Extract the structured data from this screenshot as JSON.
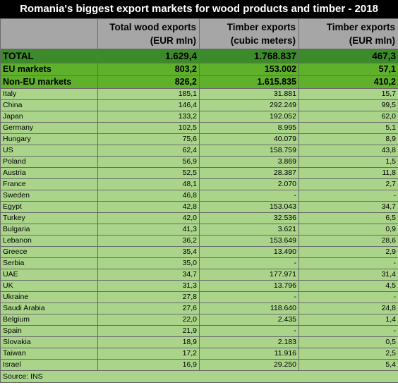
{
  "title": "Romania's biggest export markets for wood products and timber - 2018",
  "headers": [
    {
      "line1": "",
      "line2": ""
    },
    {
      "line1": "Total wood exports",
      "line2": "(EUR mln)"
    },
    {
      "line1": "Timber exports",
      "line2": "(cubic meters)"
    },
    {
      "line1": "Timber exports",
      "line2": "(EUR mln)"
    }
  ],
  "summary_rows": [
    {
      "label": "TOTAL",
      "total": "1.629,4",
      "cubic": "1.768.837",
      "eur": "467,3"
    },
    {
      "label": "EU markets",
      "total": "803,2",
      "cubic": "153.002",
      "eur": "57,1"
    },
    {
      "label": "Non-EU markets",
      "total": "826,2",
      "cubic": "1.615.835",
      "eur": "410,2"
    }
  ],
  "rows": [
    {
      "label": "Italy",
      "total": "185,1",
      "cubic": "31.881",
      "eur": "15,7"
    },
    {
      "label": "China",
      "total": "146,4",
      "cubic": "292.249",
      "eur": "99,5"
    },
    {
      "label": "Japan",
      "total": "133,2",
      "cubic": "192.052",
      "eur": "62,0"
    },
    {
      "label": "Germany",
      "total": "102,5",
      "cubic": "8.995",
      "eur": "5,1"
    },
    {
      "label": "Hungary",
      "total": "75,6",
      "cubic": "40.079",
      "eur": "8,9"
    },
    {
      "label": "US",
      "total": "62,4",
      "cubic": "158.759",
      "eur": "43,8"
    },
    {
      "label": "Poland",
      "total": "56,9",
      "cubic": "3.869",
      "eur": "1,5"
    },
    {
      "label": "Austria",
      "total": "52,5",
      "cubic": "28.387",
      "eur": "11,8"
    },
    {
      "label": "France",
      "total": "48,1",
      "cubic": "2.070",
      "eur": "2,7"
    },
    {
      "label": "Sweden",
      "total": "46,8",
      "cubic": "-",
      "eur": "-"
    },
    {
      "label": "Egypt",
      "total": "42,8",
      "cubic": "153.043",
      "eur": "34,7"
    },
    {
      "label": "Turkey",
      "total": "42,0",
      "cubic": "32.536",
      "eur": "6,5"
    },
    {
      "label": "Bulgaria",
      "total": "41,3",
      "cubic": "3.621",
      "eur": "0,9"
    },
    {
      "label": "Lebanon",
      "total": "36,2",
      "cubic": "153.649",
      "eur": "28,6"
    },
    {
      "label": "Greece",
      "total": "35,4",
      "cubic": "13.490",
      "eur": "2,9"
    },
    {
      "label": "Serbia",
      "total": "35,0",
      "cubic": "-",
      "eur": "-"
    },
    {
      "label": "UAE",
      "total": "34,7",
      "cubic": "177.971",
      "eur": "31,4"
    },
    {
      "label": "UK",
      "total": "31,3",
      "cubic": "13.796",
      "eur": "4,5"
    },
    {
      "label": "Ukraine",
      "total": "27,8",
      "cubic": "-",
      "eur": "-"
    },
    {
      "label": "Saudi Arabia",
      "total": "27,6",
      "cubic": "118.640",
      "eur": "24,8"
    },
    {
      "label": "Belgium",
      "total": "22,0",
      "cubic": "2.435",
      "eur": "1,4"
    },
    {
      "label": "Spain",
      "total": "21,9",
      "cubic": "-",
      "eur": "-"
    },
    {
      "label": "Slovakia",
      "total": "18,9",
      "cubic": "2.183",
      "eur": "0,5"
    },
    {
      "label": "Taiwan",
      "total": "17,2",
      "cubic": "11.916",
      "eur": "2,5"
    },
    {
      "label": "Israel",
      "total": "16,9",
      "cubic": "29.250",
      "eur": "5,4"
    }
  ],
  "source": "Source: INS",
  "colors": {
    "title_bg": "#000000",
    "header_bg": "#a6a6a6",
    "total_bg": "#3d8a2a",
    "subtotal_bg": "#5fb02a",
    "row_bg": "#a9d48a"
  },
  "chart_data": {
    "type": "table",
    "title": "Romania's biggest export markets for wood products and timber - 2018",
    "columns": [
      "",
      "Total wood exports (EUR mln)",
      "Timber exports (cubic meters)",
      "Timber exports (EUR mln)"
    ],
    "rows": [
      [
        "TOTAL",
        "1.629,4",
        "1.768.837",
        "467,3"
      ],
      [
        "EU markets",
        "803,2",
        "153.002",
        "57,1"
      ],
      [
        "Non-EU markets",
        "826,2",
        "1.615.835",
        "410,2"
      ],
      [
        "Italy",
        "185,1",
        "31.881",
        "15,7"
      ],
      [
        "China",
        "146,4",
        "292.249",
        "99,5"
      ],
      [
        "Japan",
        "133,2",
        "192.052",
        "62,0"
      ],
      [
        "Germany",
        "102,5",
        "8.995",
        "5,1"
      ],
      [
        "Hungary",
        "75,6",
        "40.079",
        "8,9"
      ],
      [
        "US",
        "62,4",
        "158.759",
        "43,8"
      ],
      [
        "Poland",
        "56,9",
        "3.869",
        "1,5"
      ],
      [
        "Austria",
        "52,5",
        "28.387",
        "11,8"
      ],
      [
        "France",
        "48,1",
        "2.070",
        "2,7"
      ],
      [
        "Sweden",
        "46,8",
        "-",
        "-"
      ],
      [
        "Egypt",
        "42,8",
        "153.043",
        "34,7"
      ],
      [
        "Turkey",
        "42,0",
        "32.536",
        "6,5"
      ],
      [
        "Bulgaria",
        "41,3",
        "3.621",
        "0,9"
      ],
      [
        "Lebanon",
        "36,2",
        "153.649",
        "28,6"
      ],
      [
        "Greece",
        "35,4",
        "13.490",
        "2,9"
      ],
      [
        "Serbia",
        "35,0",
        "-",
        "-"
      ],
      [
        "UAE",
        "34,7",
        "177.971",
        "31,4"
      ],
      [
        "UK",
        "31,3",
        "13.796",
        "4,5"
      ],
      [
        "Ukraine",
        "27,8",
        "-",
        "-"
      ],
      [
        "Saudi Arabia",
        "27,6",
        "118.640",
        "24,8"
      ],
      [
        "Belgium",
        "22,0",
        "2.435",
        "1,4"
      ],
      [
        "Spain",
        "21,9",
        "-",
        "-"
      ],
      [
        "Slovakia",
        "18,9",
        "2.183",
        "0,5"
      ],
      [
        "Taiwan",
        "17,2",
        "11.916",
        "2,5"
      ],
      [
        "Israel",
        "16,9",
        "29.250",
        "5,4"
      ]
    ],
    "source": "Source: INS"
  }
}
